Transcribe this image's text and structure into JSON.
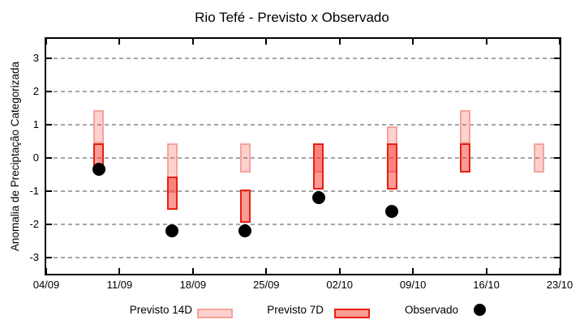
{
  "chart_data": {
    "type": "bar",
    "title": "Rio Tefé - Previsto x Observado",
    "ylabel": "Anomalia de Preciptação Categorizada",
    "xlabel": "",
    "ylim": [
      -3.5,
      3.6
    ],
    "grid": "horizontal-dashed",
    "legend_position": "bottom",
    "yticks": [
      3,
      2,
      1,
      0,
      -1,
      -2,
      -3
    ],
    "xticks": [
      {
        "label": "04/09",
        "day": 0
      },
      {
        "label": "11/09",
        "day": 7
      },
      {
        "label": "18/09",
        "day": 14
      },
      {
        "label": "25/09",
        "day": 21
      },
      {
        "label": "02/10",
        "day": 28
      },
      {
        "label": "09/10",
        "day": 35
      },
      {
        "label": "16/10",
        "day": 42
      },
      {
        "label": "23/10",
        "day": 49
      }
    ],
    "x_range_days": 49,
    "legend": {
      "previsto14d_label": "Previsto 14D",
      "previsto7d_label": "Previsto 7D",
      "observado_label": "Observado"
    },
    "series": [
      {
        "name": "Previsto 14D",
        "style": "floating-bar-light"
      },
      {
        "name": "Previsto 7D",
        "style": "floating-bar-dark"
      },
      {
        "name": "Observado",
        "style": "black-dot"
      }
    ],
    "groups": [
      {
        "date": "09/09",
        "day": 5,
        "previsto_14d": [
          0.45,
          1.45
        ],
        "previsto_7d": [
          -0.45,
          0.45
        ],
        "observado": -0.35
      },
      {
        "date": "16/09",
        "day": 12,
        "previsto_14d": [
          -1.05,
          0.45
        ],
        "previsto_7d": [
          -1.55,
          -0.55
        ],
        "observado": -2.2
      },
      {
        "date": "23/09",
        "day": 19,
        "previsto_14d": [
          -0.45,
          0.45
        ],
        "previsto_7d": [
          -1.95,
          -0.95
        ],
        "observado": -2.2
      },
      {
        "date": "30/09",
        "day": 26,
        "previsto_14d": [
          -0.45,
          0.45
        ],
        "previsto_7d": [
          -0.95,
          0.45
        ],
        "observado": -1.2
      },
      {
        "date": "07/10",
        "day": 33,
        "previsto_14d": [
          -0.45,
          0.95
        ],
        "previsto_7d": [
          -0.95,
          0.45
        ],
        "observado": -1.6
      },
      {
        "date": "14/10",
        "day": 40,
        "previsto_14d": [
          0.45,
          1.45
        ],
        "previsto_7d": [
          -0.45,
          0.45
        ],
        "observado": null
      },
      {
        "date": "21/10",
        "day": 47,
        "previsto_14d": [
          -0.45,
          0.45
        ],
        "previsto_7d": null,
        "observado": null
      }
    ],
    "colors": {
      "p14_fill": "rgba(250,60,50,0.24)",
      "p14_border": "#f2a49b",
      "p7_fill": "rgba(250,45,35,0.48)",
      "p7_border": "#e82012",
      "observado": "#000000",
      "grid": "#a6a6a6",
      "axis": "#000000"
    }
  }
}
